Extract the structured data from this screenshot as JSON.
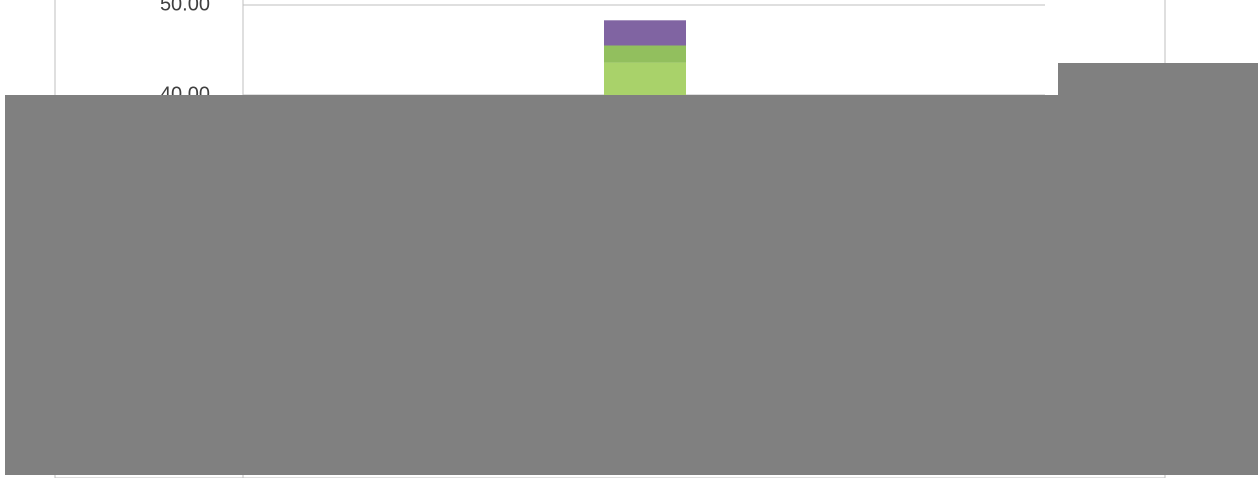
{
  "chart_data": {
    "type": "stacked_bar",
    "categories": [
      null
    ],
    "series": [
      {
        "color": "#a9d26a",
        "values": [
          43.6
        ]
      },
      {
        "color": "#92bf5e",
        "values": [
          1.9
        ]
      },
      {
        "color": "#8064a2",
        "values": [
          2.8
        ]
      }
    ],
    "ylim": [
      0,
      50
    ],
    "yticks": [
      {
        "value": 40,
        "label": "40.00"
      },
      {
        "value": 50,
        "label": "50.00"
      }
    ],
    "grid": true
  }
}
